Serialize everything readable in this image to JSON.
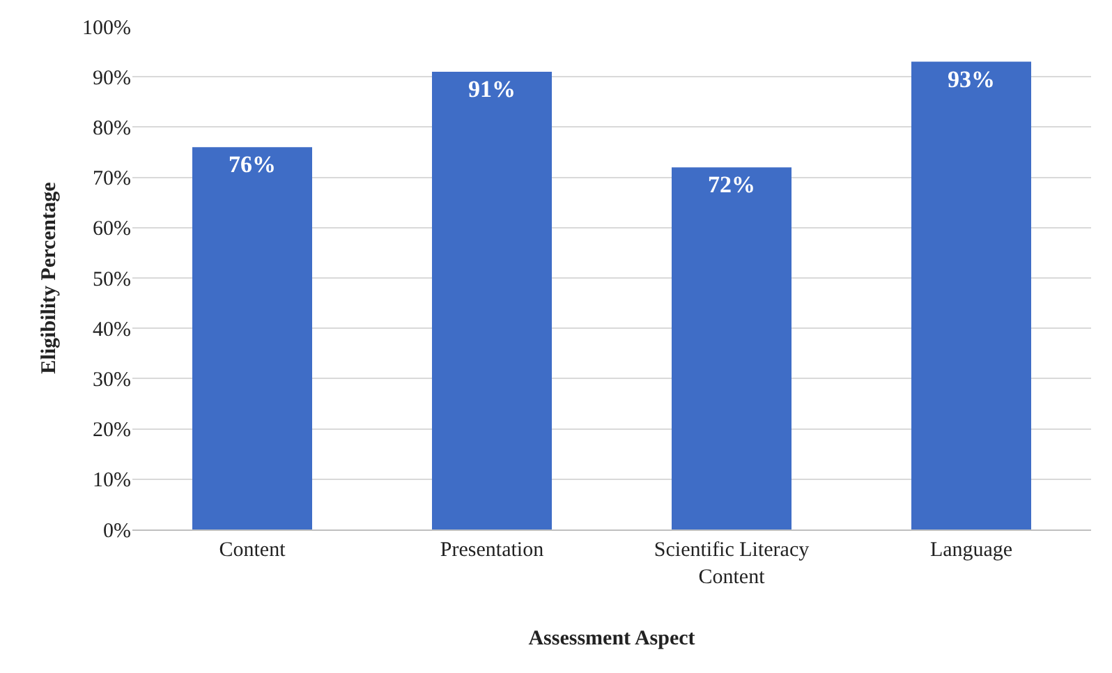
{
  "chart_data": {
    "type": "bar",
    "xlabel": "Assessment Aspect",
    "ylabel": "Eligibility Percentage",
    "categories": [
      "Content",
      "Presentation",
      "Scientific Literacy Content",
      "Language"
    ],
    "values": [
      76,
      91,
      72,
      93
    ],
    "color": "#3f6dc6",
    "value_labels": [
      "76%",
      "91%",
      "72%",
      "93%"
    ],
    "ylim": [
      0,
      100
    ],
    "yticks": [
      {
        "value": 0,
        "label": "0%"
      },
      {
        "value": 10,
        "label": "10%"
      },
      {
        "value": 20,
        "label": "20%"
      },
      {
        "value": 30,
        "label": "30%"
      },
      {
        "value": 40,
        "label": "40%"
      },
      {
        "value": 50,
        "label": "50%"
      },
      {
        "value": 60,
        "label": "60%"
      },
      {
        "value": 70,
        "label": "70%"
      },
      {
        "value": 80,
        "label": "80%"
      },
      {
        "value": 90,
        "label": "90%"
      },
      {
        "value": 100,
        "label": "100%"
      }
    ],
    "grid": "y",
    "legend": false
  }
}
